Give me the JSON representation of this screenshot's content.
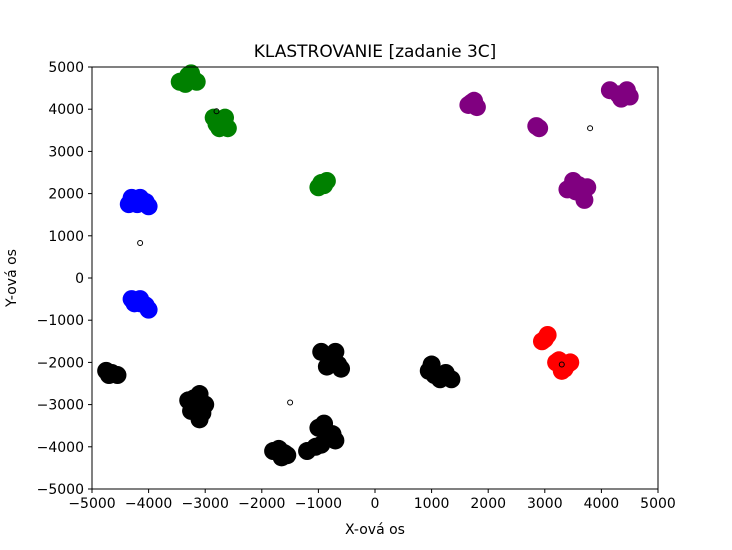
{
  "chart_data": {
    "type": "scatter",
    "title": "KLASTROVANIE  [zadanie 3C]",
    "xlabel": "X-ová os",
    "ylabel": "Y-ová os",
    "xlim": [
      -5000,
      5000
    ],
    "ylim": [
      -5000,
      5000
    ],
    "xticks": [
      -5000,
      -4000,
      -3000,
      -2000,
      -1000,
      0,
      1000,
      2000,
      3000,
      4000,
      5000
    ],
    "yticks": [
      -5000,
      -4000,
      -3000,
      -2000,
      -1000,
      0,
      1000,
      2000,
      3000,
      4000,
      5000
    ],
    "xtick_labels": [
      "−5000",
      "−4000",
      "−3000",
      "−2000",
      "−1000",
      "0",
      "1000",
      "2000",
      "3000",
      "4000",
      "5000"
    ],
    "ytick_labels": [
      "−5000",
      "−4000",
      "−3000",
      "−2000",
      "−1000",
      "0",
      "1000",
      "2000",
      "3000",
      "4000",
      "5000"
    ],
    "grid": false,
    "series": [
      {
        "color": "#008000",
        "points": [
          [
            -3450,
            4650
          ],
          [
            -3300,
            4800
          ],
          [
            -3200,
            4700
          ],
          [
            -3350,
            4600
          ],
          [
            -3250,
            4850
          ],
          [
            -3150,
            4650
          ],
          [
            -2850,
            3800
          ],
          [
            -2700,
            3700
          ],
          [
            -2600,
            3550
          ],
          [
            -2750,
            3550
          ],
          [
            -2800,
            3650
          ],
          [
            -2650,
            3800
          ],
          [
            -950,
            2250
          ],
          [
            -900,
            2200
          ],
          [
            -1000,
            2150
          ],
          [
            -850,
            2300
          ]
        ]
      },
      {
        "color": "#0000ff",
        "points": [
          [
            -4300,
            1900
          ],
          [
            -4200,
            1750
          ],
          [
            -4050,
            1800
          ],
          [
            -4350,
            1750
          ],
          [
            -4150,
            1900
          ],
          [
            -4000,
            1700
          ],
          [
            -4300,
            -500
          ],
          [
            -4150,
            -600
          ],
          [
            -4000,
            -750
          ],
          [
            -4150,
            -500
          ],
          [
            -4050,
            -650
          ],
          [
            -4250,
            -600
          ]
        ]
      },
      {
        "color": "#800080",
        "points": [
          [
            1650,
            4100
          ],
          [
            1750,
            4200
          ],
          [
            1800,
            4050
          ],
          [
            1700,
            4150
          ],
          [
            2850,
            3600
          ],
          [
            2900,
            3550
          ],
          [
            4150,
            4450
          ],
          [
            4300,
            4350
          ],
          [
            4500,
            4300
          ],
          [
            4450,
            4450
          ],
          [
            4350,
            4250
          ],
          [
            3400,
            2100
          ],
          [
            3600,
            2200
          ],
          [
            3750,
            2150
          ],
          [
            3500,
            2300
          ],
          [
            3650,
            2000
          ],
          [
            3700,
            1850
          ],
          [
            3550,
            2050
          ]
        ]
      },
      {
        "color": "#ff0000",
        "points": [
          [
            2950,
            -1500
          ],
          [
            3050,
            -1350
          ],
          [
            3000,
            -1450
          ],
          [
            3200,
            -2000
          ],
          [
            3350,
            -2150
          ],
          [
            3400,
            -2050
          ],
          [
            3250,
            -1950
          ],
          [
            3300,
            -2200
          ],
          [
            3450,
            -2000
          ]
        ]
      },
      {
        "color": "#000000",
        "points": [
          [
            -4750,
            -2200
          ],
          [
            -4650,
            -2250
          ],
          [
            -4550,
            -2300
          ],
          [
            -4700,
            -2300
          ],
          [
            -3300,
            -2900
          ],
          [
            -3150,
            -3050
          ],
          [
            -3100,
            -2750
          ],
          [
            -3250,
            -3150
          ],
          [
            -3000,
            -3000
          ],
          [
            -3200,
            -2850
          ],
          [
            -3100,
            -3350
          ],
          [
            -3050,
            -3200
          ],
          [
            -1800,
            -4100
          ],
          [
            -1650,
            -4250
          ],
          [
            -1550,
            -4200
          ],
          [
            -1700,
            -4050
          ],
          [
            -1600,
            -4150
          ],
          [
            -1200,
            -4100
          ],
          [
            -1000,
            -3550
          ],
          [
            -850,
            -3800
          ],
          [
            -750,
            -3700
          ],
          [
            -900,
            -3450
          ],
          [
            -1050,
            -4000
          ],
          [
            -950,
            -3950
          ],
          [
            -700,
            -3850
          ],
          [
            -950,
            -1750
          ],
          [
            -800,
            -1850
          ],
          [
            -650,
            -2050
          ],
          [
            -700,
            -1750
          ],
          [
            -850,
            -2100
          ],
          [
            -600,
            -2150
          ],
          [
            -750,
            -1950
          ],
          [
            950,
            -2200
          ],
          [
            1050,
            -2300
          ],
          [
            1200,
            -2300
          ],
          [
            1350,
            -2400
          ],
          [
            1000,
            -2050
          ],
          [
            1150,
            -2400
          ],
          [
            1250,
            -2250
          ]
        ]
      }
    ],
    "centroids": [
      [
        -2800,
        3950
      ],
      [
        -4150,
        830
      ],
      [
        3800,
        3550
      ],
      [
        3300,
        -2050
      ],
      [
        -1500,
        -2950
      ]
    ]
  }
}
